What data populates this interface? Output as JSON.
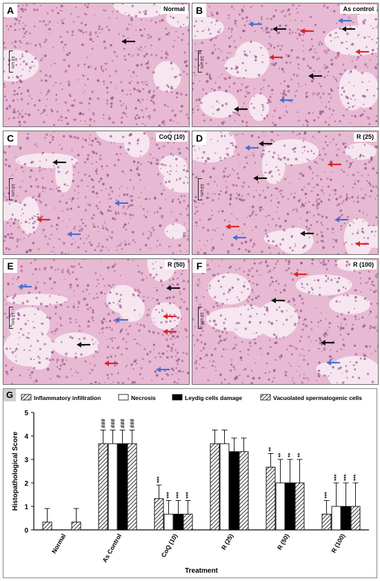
{
  "panels": [
    {
      "label": "A",
      "condition": "Normal",
      "scale": "10 um"
    },
    {
      "label": "B",
      "condition": "As control",
      "scale": "10 um"
    },
    {
      "label": "C",
      "condition": "CoQ (10)",
      "scale": "10 um"
    },
    {
      "label": "D",
      "condition": "R (25)",
      "scale": "10 um"
    },
    {
      "label": "E",
      "condition": "R (50)",
      "scale": "10 um"
    },
    {
      "label": "F",
      "condition": "R (100)",
      "scale": "10 um"
    }
  ],
  "graph_label": "G",
  "arrow_colors": {
    "black": "#111111",
    "red": "#e02424",
    "blue": "#4a6fd0"
  },
  "chart_data": {
    "type": "bar",
    "title": "",
    "xlabel": "Treatment",
    "ylabel": "Histopathological Score",
    "ylim": [
      0,
      5
    ],
    "yticks": [
      "0",
      "1",
      "2",
      "3",
      "4",
      "5"
    ],
    "categories": [
      "Normal",
      "As Control",
      "CoQ (10)",
      "R (25)",
      "R (50)",
      "R (100)"
    ],
    "legend_position": "top",
    "series": [
      {
        "name": "Inflammatory infiltration",
        "pattern": "hatch",
        "values": [
          0.33,
          3.67,
          1.33,
          3.67,
          2.67,
          0.67
        ],
        "errors": [
          0.58,
          0.58,
          0.58,
          0.58,
          0.58,
          0.58
        ],
        "annotations": [
          "",
          "###",
          "***",
          "",
          "**",
          "***"
        ]
      },
      {
        "name": "Necrosis",
        "pattern": "white",
        "values": [
          0,
          3.67,
          0.67,
          3.67,
          2.0,
          1.0
        ],
        "errors": [
          0,
          0.58,
          0.58,
          0.58,
          1.0,
          1.0
        ],
        "annotations": [
          "",
          "###",
          "***",
          "",
          "**",
          "***"
        ]
      },
      {
        "name": "Leydig cells damage",
        "pattern": "black",
        "values": [
          0,
          3.67,
          0.67,
          3.33,
          2.0,
          1.0
        ],
        "errors": [
          0,
          0.58,
          0.58,
          0.58,
          1.0,
          1.0
        ],
        "annotations": [
          "",
          "###",
          "***",
          "",
          "**",
          "***"
        ]
      },
      {
        "name": "Vacuolated spermatogenic cells",
        "pattern": "hatch",
        "values": [
          0.33,
          3.67,
          0.67,
          3.33,
          2.0,
          1.0
        ],
        "errors": [
          0.58,
          0.58,
          0.58,
          0.58,
          1.0,
          1.0
        ],
        "annotations": [
          "",
          "###",
          "***",
          "",
          "**",
          "***"
        ]
      }
    ]
  }
}
